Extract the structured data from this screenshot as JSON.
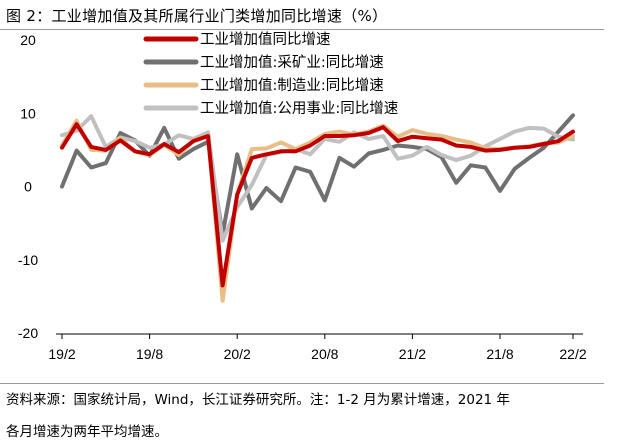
{
  "figure_title": "图 2：工业增加值及其所属行业门类增加同比增速（%）",
  "note_line1": "资料来源：国家统计局，Wind，长江证券研究所。注：1-2 月为累计增速，2021 年",
  "note_line2": "各月增速为两年平均增速。",
  "chart_data": {
    "type": "line",
    "title": "工业增加值及其所属行业门类增加同比增速（%）",
    "xlabel": "",
    "ylabel": "%",
    "ylim": [
      -20,
      20
    ],
    "yticks": [
      20,
      10,
      0,
      -10,
      -20
    ],
    "x_start": "2019-02",
    "x_tick_labels": [
      "19/2",
      "19/8",
      "20/2",
      "20/8",
      "21/2",
      "21/8",
      "22/2"
    ],
    "legend_position": "top-center",
    "series": [
      {
        "name": "工业增加值同比增速",
        "color": "#c00000",
        "values": [
          5.3,
          8.5,
          5.4,
          5.0,
          6.3,
          4.8,
          4.4,
          5.8,
          4.7,
          6.2,
          6.9,
          -13.5,
          -1.1,
          3.9,
          4.4,
          4.8,
          4.8,
          5.6,
          6.9,
          6.9,
          7.0,
          7.3,
          8.1,
          6.2,
          6.8,
          6.6,
          6.4,
          5.6,
          5.4,
          4.9,
          5.0,
          5.3,
          5.4,
          5.8,
          6.2,
          7.5
        ]
      },
      {
        "name": "工业增加值:采矿业:同比增速",
        "color": "#707070",
        "values": [
          0.0,
          4.9,
          2.6,
          3.2,
          7.3,
          6.3,
          4.2,
          8.0,
          3.8,
          5.1,
          6.1,
          -6.5,
          4.4,
          -3.0,
          -0.2,
          -2.0,
          2.6,
          2.0,
          -1.9,
          3.9,
          2.7,
          4.5,
          5.0,
          5.6,
          5.4,
          5.1,
          4.0,
          0.5,
          2.9,
          2.6,
          -0.6,
          2.4,
          3.9,
          5.3,
          7.5,
          9.7
        ]
      },
      {
        "name": "工业增加值:制造业:同比增速",
        "color": "#e8be86",
        "values": [
          5.6,
          9.0,
          5.0,
          4.9,
          6.6,
          4.8,
          4.3,
          5.7,
          4.3,
          6.3,
          7.0,
          -15.6,
          -1.1,
          5.1,
          5.2,
          6.0,
          5.1,
          6.0,
          7.2,
          7.5,
          7.1,
          7.5,
          8.3,
          6.8,
          7.7,
          7.2,
          6.9,
          6.4,
          6.0,
          5.2,
          5.1,
          5.3,
          5.5,
          5.9,
          6.0,
          6.9
        ]
      },
      {
        "name": "工业增加值:公用事业:同比增速",
        "color": "#c0c0c0",
        "values": [
          7.0,
          7.6,
          9.6,
          5.4,
          6.7,
          6.2,
          5.3,
          5.7,
          7.0,
          6.5,
          7.4,
          -7.4,
          -2.8,
          0.2,
          4.3,
          4.7,
          5.1,
          4.4,
          6.5,
          6.1,
          7.4,
          6.5,
          6.9,
          3.8,
          4.2,
          5.4,
          4.3,
          3.6,
          4.2,
          5.5,
          6.5,
          7.5,
          8.0,
          7.9,
          6.8,
          6.4
        ]
      }
    ]
  }
}
